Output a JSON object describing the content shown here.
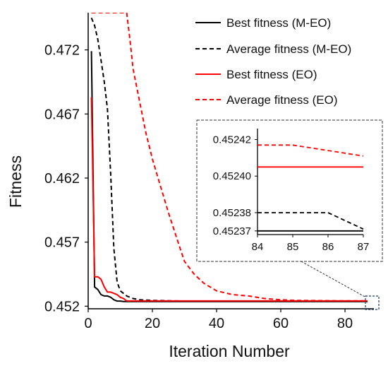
{
  "chart_data": {
    "type": "line",
    "xlabel": "Iteration Number",
    "ylabel": "Fitness",
    "xlim": [
      0,
      89
    ],
    "ylim": [
      0.4518,
      0.4749
    ],
    "x_ticks": [
      "0",
      "20",
      "40",
      "60",
      "80"
    ],
    "y_ticks": [
      "0.452",
      "0.457",
      "0.462",
      "0.467",
      "0.472"
    ],
    "grid": false,
    "legend_position": "top-right",
    "series": [
      {
        "name": "Best fitness (M-EO)",
        "color": "#000000",
        "style": "solid",
        "points": [
          [
            1,
            0.4719
          ],
          [
            2,
            0.4535
          ],
          [
            3,
            0.4533
          ],
          [
            4,
            0.4529
          ],
          [
            5,
            0.4528
          ],
          [
            6,
            0.4528
          ],
          [
            7,
            0.4527
          ],
          [
            8,
            0.4525
          ],
          [
            9,
            0.4524
          ],
          [
            10,
            0.4524
          ],
          [
            11,
            0.45237
          ],
          [
            15,
            0.45237
          ],
          [
            20,
            0.45237
          ],
          [
            40,
            0.45237
          ],
          [
            60,
            0.45237
          ],
          [
            87,
            0.45237
          ]
        ]
      },
      {
        "name": "Average fitness (M-EO)",
        "color": "#000000",
        "style": "dashed",
        "points": [
          [
            1,
            0.4745
          ],
          [
            2,
            0.4739
          ],
          [
            3,
            0.4728
          ],
          [
            4,
            0.4712
          ],
          [
            5,
            0.4695
          ],
          [
            6,
            0.4674
          ],
          [
            7,
            0.4623
          ],
          [
            8,
            0.4565
          ],
          [
            9,
            0.4539
          ],
          [
            10,
            0.4532
          ],
          [
            12,
            0.4528
          ],
          [
            14,
            0.4526
          ],
          [
            16,
            0.4525
          ],
          [
            20,
            0.45245
          ],
          [
            30,
            0.4524
          ],
          [
            40,
            0.45239
          ],
          [
            60,
            0.45239
          ],
          [
            86,
            0.45238
          ],
          [
            87,
            0.45237
          ]
        ]
      },
      {
        "name": "Best fitness (EO)",
        "color": "#ff0000",
        "style": "solid",
        "points": [
          [
            1,
            0.4683
          ],
          [
            2,
            0.4543
          ],
          [
            3,
            0.4543
          ],
          [
            4,
            0.4541
          ],
          [
            5,
            0.4535
          ],
          [
            6,
            0.4531
          ],
          [
            7,
            0.4531
          ],
          [
            8,
            0.453
          ],
          [
            9,
            0.4529
          ],
          [
            10,
            0.4527
          ],
          [
            11,
            0.4526
          ],
          [
            12,
            0.45241
          ],
          [
            20,
            0.45241
          ],
          [
            40,
            0.45241
          ],
          [
            60,
            0.45241
          ],
          [
            87,
            0.45241
          ]
        ]
      },
      {
        "name": "Average fitness (EO)",
        "color": "#ff0000",
        "style": "dashed",
        "points": [
          [
            1,
            0.4749
          ],
          [
            5,
            0.4749
          ],
          [
            10,
            0.4749
          ],
          [
            12,
            0.4749
          ],
          [
            13,
            0.4728
          ],
          [
            14,
            0.4705
          ],
          [
            16,
            0.468
          ],
          [
            18,
            0.4655
          ],
          [
            20,
            0.4635
          ],
          [
            22,
            0.4618
          ],
          [
            25,
            0.4593
          ],
          [
            28,
            0.457
          ],
          [
            30,
            0.4555
          ],
          [
            33,
            0.4545
          ],
          [
            36,
            0.4538
          ],
          [
            40,
            0.4532
          ],
          [
            45,
            0.4529
          ],
          [
            50,
            0.4528
          ],
          [
            55,
            0.4526
          ],
          [
            60,
            0.4525
          ],
          [
            65,
            0.45245
          ],
          [
            70,
            0.45244
          ],
          [
            75,
            0.45243
          ],
          [
            80,
            0.45242
          ],
          [
            85,
            0.45242
          ],
          [
            87,
            0.45241
          ]
        ]
      }
    ],
    "inset": {
      "xlim": [
        84,
        87
      ],
      "ylim": [
        0.452368,
        0.452426
      ],
      "x_ticks": [
        "84",
        "85",
        "86",
        "87"
      ],
      "y_ticks": [
        "0.45237",
        "0.45238",
        "0.45240",
        "0.45242"
      ],
      "series": [
        {
          "name": "Best fitness (M-EO)",
          "color": "#000000",
          "style": "solid",
          "points": [
            [
              84,
              0.45237
            ],
            [
              87,
              0.45237
            ]
          ]
        },
        {
          "name": "Average fitness (M-EO)",
          "color": "#000000",
          "style": "dashed",
          "points": [
            [
              84,
              0.45238
            ],
            [
              86,
              0.45238
            ],
            [
              87,
              0.452371
            ]
          ]
        },
        {
          "name": "Best fitness (EO)",
          "color": "#ff0000",
          "style": "solid",
          "points": [
            [
              84,
              0.452405
            ],
            [
              87,
              0.452405
            ]
          ]
        },
        {
          "name": "Average fitness (EO)",
          "color": "#ff0000",
          "style": "dashed",
          "points": [
            [
              84,
              0.452417
            ],
            [
              85,
              0.452417
            ],
            [
              87,
              0.452411
            ]
          ]
        }
      ]
    }
  }
}
